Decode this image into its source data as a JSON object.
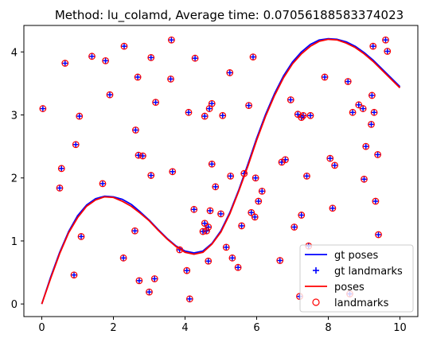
{
  "chart_data": {
    "type": "scatter",
    "title": "Method: lu_colamd, Average time: 0.07056188583374023",
    "xlim": [
      -0.5,
      10.5
    ],
    "ylim": [
      -0.2,
      4.42
    ],
    "xticks": [
      "0",
      "2",
      "4",
      "6",
      "8",
      "10"
    ],
    "yticks": [
      "0",
      "1",
      "2",
      "3",
      "4"
    ],
    "grid": false,
    "legend_position": "bottom-right",
    "colors": {
      "gt": "#0000ff",
      "est": "#ff0000"
    },
    "series": [
      {
        "name": "gt poses",
        "style": "line",
        "color": "#0000ff",
        "x": [
          0,
          0.25,
          0.5,
          0.75,
          1,
          1.25,
          1.5,
          1.75,
          2,
          2.25,
          2.5,
          2.75,
          3,
          3.25,
          3.5,
          3.75,
          4,
          4.25,
          4.5,
          4.75,
          5,
          5.25,
          5.5,
          5.75,
          6,
          6.25,
          6.5,
          6.75,
          7,
          7.25,
          7.5,
          7.75,
          8,
          8.25,
          8.5,
          8.75,
          9,
          9.25,
          9.5,
          9.75,
          10
        ],
        "y": [
          0.0,
          0.43,
          0.82,
          1.15,
          1.4,
          1.57,
          1.67,
          1.71,
          1.7,
          1.66,
          1.58,
          1.46,
          1.33,
          1.18,
          1.04,
          0.92,
          0.84,
          0.81,
          0.84,
          0.96,
          1.16,
          1.45,
          1.81,
          2.21,
          2.63,
          3.01,
          3.34,
          3.62,
          3.84,
          4.0,
          4.12,
          4.19,
          4.21,
          4.2,
          4.16,
          4.09,
          3.99,
          3.87,
          3.73,
          3.59,
          3.45
        ]
      },
      {
        "name": "gt landmarks",
        "style": "plus",
        "color": "#0000ff",
        "x": [
          0.03,
          0.5,
          0.55,
          0.65,
          0.9,
          0.95,
          1.05,
          1.1,
          1.4,
          1.7,
          1.78,
          1.9,
          2.28,
          2.3,
          2.6,
          2.62,
          2.68,
          2.7,
          2.72,
          2.82,
          3.0,
          3.05,
          3.05,
          3.15,
          3.18,
          3.6,
          3.62,
          3.65,
          3.85,
          4.05,
          4.1,
          4.13,
          4.25,
          4.28,
          4.5,
          4.55,
          4.55,
          4.6,
          4.65,
          4.65,
          4.68,
          4.7,
          4.75,
          4.75,
          4.85,
          5.0,
          5.05,
          5.15,
          5.25,
          5.27,
          5.32,
          5.48,
          5.58,
          5.65,
          5.78,
          5.85,
          5.9,
          5.95,
          5.97,
          6.05,
          6.15,
          6.65,
          6.7,
          6.8,
          6.95,
          7.05,
          7.15,
          7.2,
          7.25,
          7.25,
          7.3,
          7.4,
          7.45,
          7.5,
          7.9,
          8.05,
          8.12,
          8.18,
          8.55,
          8.6,
          8.68,
          8.85,
          8.97,
          9.0,
          9.05,
          9.2,
          9.22,
          9.25,
          9.28,
          9.32,
          9.38,
          9.4,
          9.6,
          9.65
        ],
        "y": [
          3.1,
          1.84,
          2.15,
          3.82,
          0.46,
          2.53,
          2.98,
          1.07,
          3.93,
          1.91,
          3.86,
          3.32,
          0.73,
          4.09,
          1.16,
          2.76,
          3.6,
          2.36,
          0.37,
          2.35,
          0.19,
          3.91,
          2.04,
          0.4,
          3.2,
          3.57,
          4.19,
          2.1,
          0.86,
          0.53,
          3.04,
          0.08,
          1.5,
          3.9,
          1.15,
          2.98,
          1.28,
          1.16,
          1.22,
          0.68,
          3.1,
          1.48,
          2.22,
          3.18,
          1.86,
          1.43,
          2.99,
          0.9,
          3.67,
          2.03,
          0.73,
          0.58,
          1.24,
          2.07,
          3.15,
          1.45,
          3.92,
          1.38,
          2.0,
          1.63,
          1.79,
          0.69,
          2.25,
          2.29,
          3.24,
          1.22,
          3.01,
          0.12,
          1.41,
          2.96,
          2.99,
          2.03,
          0.92,
          2.99,
          3.6,
          2.31,
          1.52,
          2.2,
          3.53,
          0.16,
          3.04,
          3.16,
          3.1,
          1.98,
          2.5,
          2.85,
          3.31,
          4.09,
          3.04,
          1.63,
          2.37,
          1.1,
          4.19,
          4.01
        ]
      },
      {
        "name": "poses",
        "style": "line",
        "color": "#ff0000",
        "x": [
          0,
          0.25,
          0.5,
          0.75,
          1,
          1.25,
          1.5,
          1.75,
          2,
          2.25,
          2.5,
          2.75,
          3,
          3.25,
          3.5,
          3.75,
          4,
          4.25,
          4.5,
          4.75,
          5,
          5.25,
          5.5,
          5.75,
          6,
          6.25,
          6.5,
          6.75,
          7,
          7.25,
          7.5,
          7.75,
          8,
          8.25,
          8.5,
          8.75,
          9,
          9.25,
          9.5,
          9.75,
          10
        ],
        "y": [
          0.0,
          0.41,
          0.8,
          1.13,
          1.37,
          1.55,
          1.65,
          1.7,
          1.69,
          1.63,
          1.55,
          1.44,
          1.32,
          1.17,
          1.03,
          0.91,
          0.82,
          0.79,
          0.82,
          0.95,
          1.14,
          1.43,
          1.79,
          2.18,
          2.6,
          2.98,
          3.31,
          3.59,
          3.81,
          3.97,
          4.09,
          4.17,
          4.2,
          4.19,
          4.14,
          4.07,
          3.97,
          3.85,
          3.71,
          3.57,
          3.43
        ]
      },
      {
        "name": "landmarks",
        "style": "circle",
        "color": "#ff0000",
        "x": [
          0.03,
          0.5,
          0.55,
          0.65,
          0.9,
          0.95,
          1.05,
          1.1,
          1.4,
          1.7,
          1.78,
          1.9,
          2.28,
          2.3,
          2.6,
          2.62,
          2.68,
          2.7,
          2.72,
          2.82,
          3.0,
          3.05,
          3.05,
          3.15,
          3.18,
          3.6,
          3.62,
          3.65,
          3.85,
          4.05,
          4.1,
          4.13,
          4.25,
          4.28,
          4.5,
          4.55,
          4.55,
          4.6,
          4.65,
          4.65,
          4.68,
          4.7,
          4.75,
          4.75,
          4.85,
          5.0,
          5.05,
          5.15,
          5.25,
          5.27,
          5.32,
          5.48,
          5.58,
          5.65,
          5.78,
          5.85,
          5.9,
          5.95,
          5.97,
          6.05,
          6.15,
          6.65,
          6.7,
          6.8,
          6.95,
          7.05,
          7.15,
          7.2,
          7.25,
          7.25,
          7.3,
          7.4,
          7.45,
          7.5,
          7.9,
          8.05,
          8.12,
          8.18,
          8.55,
          8.6,
          8.68,
          8.85,
          8.97,
          9.0,
          9.05,
          9.2,
          9.22,
          9.25,
          9.28,
          9.32,
          9.38,
          9.4,
          9.6,
          9.65
        ],
        "y": [
          3.1,
          1.84,
          2.15,
          3.82,
          0.46,
          2.53,
          2.98,
          1.07,
          3.93,
          1.91,
          3.86,
          3.32,
          0.73,
          4.09,
          1.16,
          2.76,
          3.6,
          2.36,
          0.37,
          2.35,
          0.19,
          3.91,
          2.04,
          0.4,
          3.2,
          3.57,
          4.19,
          2.1,
          0.86,
          0.53,
          3.04,
          0.08,
          1.5,
          3.9,
          1.15,
          2.98,
          1.28,
          1.16,
          1.22,
          0.68,
          3.1,
          1.48,
          2.22,
          3.18,
          1.86,
          1.43,
          2.99,
          0.9,
          3.67,
          2.03,
          0.73,
          0.58,
          1.24,
          2.07,
          3.15,
          1.45,
          3.92,
          1.38,
          2.0,
          1.63,
          1.79,
          0.69,
          2.25,
          2.29,
          3.24,
          1.22,
          3.01,
          0.12,
          1.41,
          2.96,
          2.99,
          2.03,
          0.92,
          2.99,
          3.6,
          2.31,
          1.52,
          2.2,
          3.53,
          0.16,
          3.04,
          3.16,
          3.1,
          1.98,
          2.5,
          2.85,
          3.31,
          4.09,
          3.04,
          1.63,
          2.37,
          1.1,
          4.19,
          4.01
        ]
      }
    ]
  }
}
